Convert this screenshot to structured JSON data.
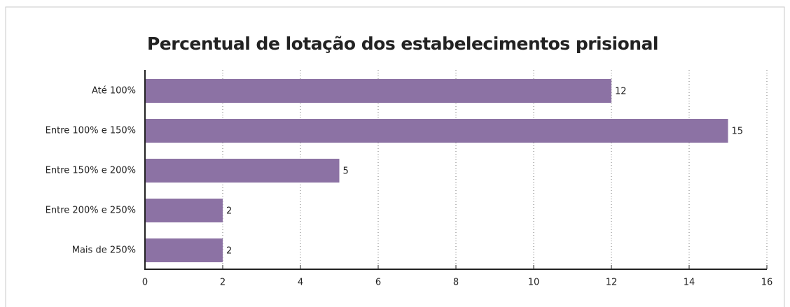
{
  "chart_data": {
    "type": "bar",
    "orientation": "horizontal",
    "title": "Percentual de lotação dos estabelecimentos prisional",
    "categories": [
      "Até 100%",
      "Entre 100% e 150%",
      "Entre 150% e 200%",
      "Entre 200% e 250%",
      "Mais de 250%"
    ],
    "values": [
      12,
      15,
      5,
      2,
      2
    ],
    "color": "#8c72a4",
    "xlim": [
      0,
      16
    ],
    "xticks": [
      0,
      2,
      4,
      6,
      8,
      10,
      12,
      14,
      16
    ],
    "grid": true
  }
}
